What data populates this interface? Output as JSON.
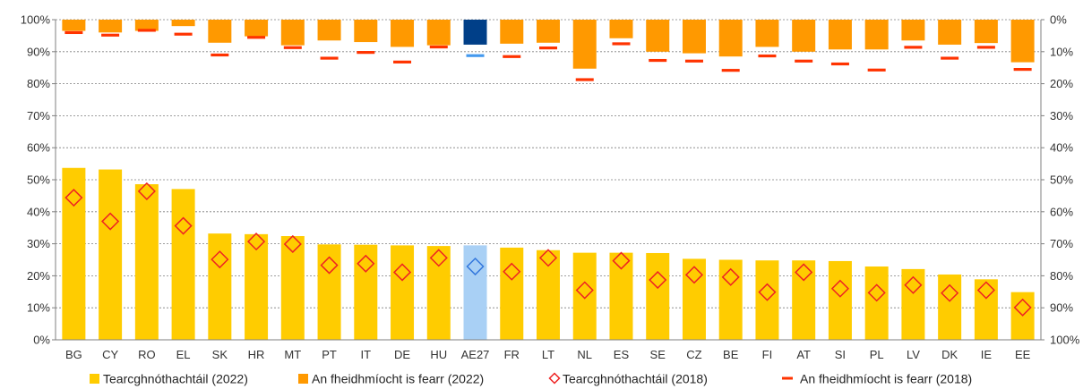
{
  "chart_data": {
    "type": "bar",
    "categories": [
      "BG",
      "CY",
      "RO",
      "EL",
      "SK",
      "HR",
      "MT",
      "PT",
      "IT",
      "DE",
      "HU",
      "AE27",
      "FR",
      "LT",
      "NL",
      "ES",
      "SE",
      "CZ",
      "BE",
      "FI",
      "AT",
      "SI",
      "PL",
      "LV",
      "DK",
      "IE",
      "EE"
    ],
    "highlight_category": "AE27",
    "y_left": {
      "ticks": [
        "0%",
        "10%",
        "20%",
        "30%",
        "40%",
        "50%",
        "60%",
        "70%",
        "80%",
        "90%",
        "100%"
      ],
      "ylim": [
        0,
        100
      ]
    },
    "y_right": {
      "ticks": [
        "100%",
        "90%",
        "80%",
        "70%",
        "60%",
        "50%",
        "40%",
        "30%",
        "20%",
        "10%",
        "0%"
      ],
      "ylim": [
        0,
        100
      ],
      "inverted": true
    },
    "grid": true,
    "legend_position": "bottom",
    "series": [
      {
        "name": "Tearcghnóthachtáil (2022)",
        "type": "bar",
        "axis": "left",
        "color": "#ffcc00",
        "highlight_color": "#a9d0f5",
        "values": [
          53.7,
          53.2,
          48.6,
          47.1,
          33.2,
          33.0,
          32.4,
          29.8,
          29.7,
          29.5,
          29.3,
          29.5,
          28.8,
          28.0,
          27.2,
          27.2,
          27.1,
          25.3,
          25.0,
          24.8,
          24.8,
          24.6,
          22.9,
          22.1,
          20.4,
          18.9,
          14.9
        ]
      },
      {
        "name": "An fheidhmíocht is fearr (2022)",
        "type": "bar",
        "axis": "right",
        "color": "#ff9900",
        "highlight_color": "#003f88",
        "values": [
          3.5,
          4.0,
          3.5,
          2.0,
          7.2,
          5.2,
          8.0,
          6.5,
          7.0,
          8.5,
          8.0,
          7.8,
          7.5,
          7.2,
          15.3,
          5.8,
          10.0,
          10.5,
          11.5,
          8.5,
          10.0,
          9.3,
          9.3,
          6.5,
          7.8,
          7.3,
          13.3
        ]
      },
      {
        "name": "Tearcghnóthachtáil (2018)",
        "type": "marker-diamond",
        "axis": "left",
        "color": "#ee2222",
        "highlight_color": "#3377dd",
        "values": [
          44.4,
          37.0,
          46.4,
          35.6,
          25.1,
          30.7,
          29.9,
          23.3,
          23.8,
          21.1,
          25.6,
          22.9,
          21.3,
          25.6,
          15.5,
          24.7,
          18.7,
          20.3,
          19.6,
          14.9,
          21.1,
          16.0,
          14.7,
          17.1,
          14.6,
          15.5,
          10.1
        ]
      },
      {
        "name": "An fheidhmíocht is fearr (2018)",
        "type": "marker-dash",
        "axis": "right",
        "color": "#ff3300",
        "highlight_color": "#4499ee",
        "values": [
          4.0,
          4.8,
          3.3,
          4.5,
          11.0,
          5.5,
          8.7,
          12.0,
          10.2,
          13.2,
          8.5,
          11.2,
          11.5,
          8.8,
          18.7,
          7.5,
          12.7,
          12.9,
          15.8,
          11.3,
          12.9,
          13.8,
          15.7,
          8.6,
          12.0,
          8.6,
          15.5
        ]
      }
    ]
  }
}
